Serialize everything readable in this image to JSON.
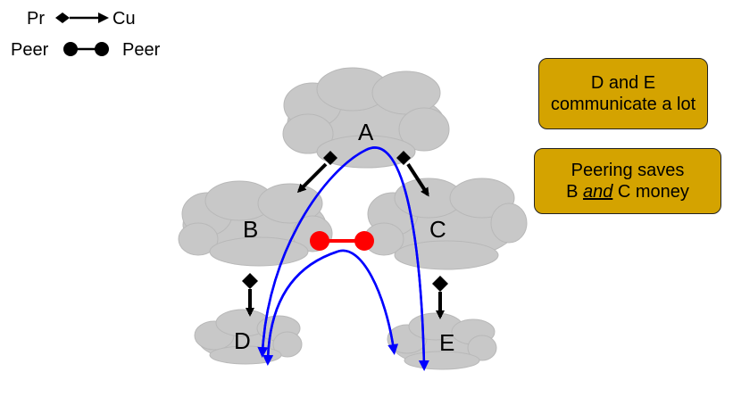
{
  "legend": {
    "provider_label": "Pr",
    "customer_label": "Cu",
    "peer_left_label": "Peer",
    "peer_right_label": "Peer"
  },
  "nodes": {
    "a": "A",
    "b": "B",
    "c": "C",
    "d": "D",
    "e": "E"
  },
  "callouts": {
    "first": {
      "line1": "D and E",
      "line2": "communicate a lot"
    },
    "second": {
      "line1": "Peering saves",
      "line2_pre": "B ",
      "line2_em": "and",
      "line2_post": " C money"
    }
  },
  "colors": {
    "cloud_fill": "#c8c8c8",
    "callout_fill": "#d4a300",
    "peer_link": "#ff0000",
    "traffic_path": "#0000ff",
    "link": "#000000"
  }
}
